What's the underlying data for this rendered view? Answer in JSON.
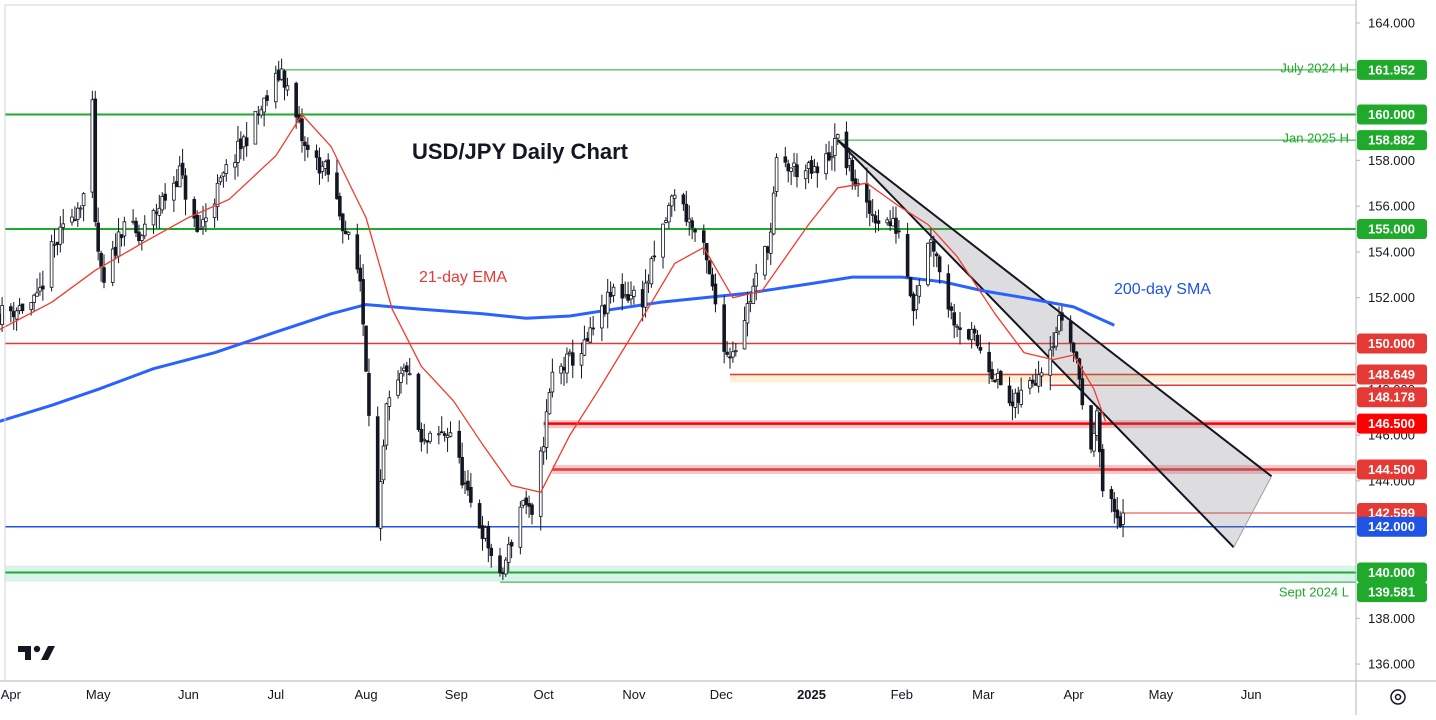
{
  "chart_data": {
    "type": "candlestick",
    "title": "USD/JPY Daily Chart",
    "ylim": [
      135.0,
      165.0
    ],
    "y_ticks": [
      "136.000",
      "138.000",
      "140.000",
      "142.000",
      "144.000",
      "146.000",
      "148.000",
      "150.000",
      "152.000",
      "154.000",
      "156.000",
      "158.000",
      "160.000",
      "162.000",
      "164.000"
    ],
    "x_ticks": [
      {
        "label": "Apr",
        "date": "2024-04-01",
        "bold": false
      },
      {
        "label": "May",
        "date": "2024-05-01",
        "bold": false
      },
      {
        "label": "Jun",
        "date": "2024-06-01",
        "bold": false
      },
      {
        "label": "Jul",
        "date": "2024-07-01",
        "bold": false
      },
      {
        "label": "Aug",
        "date": "2024-08-01",
        "bold": false
      },
      {
        "label": "Sep",
        "date": "2024-09-01",
        "bold": false
      },
      {
        "label": "Oct",
        "date": "2024-10-01",
        "bold": false
      },
      {
        "label": "Nov",
        "date": "2024-11-01",
        "bold": false
      },
      {
        "label": "Dec",
        "date": "2024-12-01",
        "bold": false
      },
      {
        "label": "2025",
        "date": "2025-01-01",
        "bold": true
      },
      {
        "label": "Feb",
        "date": "2025-02-01",
        "bold": false
      },
      {
        "label": "Mar",
        "date": "2025-03-01",
        "bold": false
      },
      {
        "label": "Apr",
        "date": "2025-04-01",
        "bold": false
      },
      {
        "label": "May",
        "date": "2025-05-01",
        "bold": false
      },
      {
        "label": "Jun",
        "date": "2025-06-01",
        "bold": false
      }
    ],
    "x_range": [
      "2024-03-30",
      "2025-07-07"
    ],
    "price_path": [
      [
        "2024-03-28",
        151.3
      ],
      [
        "2024-04-10",
        151.8
      ],
      [
        "2024-04-15",
        154.0
      ],
      [
        "2024-04-26",
        156.5
      ],
      [
        "2024-04-29",
        160.2
      ],
      [
        "2024-04-29",
        156.0
      ],
      [
        "2024-05-02",
        153.0
      ],
      [
        "2024-05-03",
        152.5
      ],
      [
        "2024-05-10",
        155.5
      ],
      [
        "2024-05-15",
        154.5
      ],
      [
        "2024-05-29",
        157.5
      ],
      [
        "2024-06-04",
        154.8
      ],
      [
        "2024-06-14",
        157.5
      ],
      [
        "2024-06-26",
        160.2
      ],
      [
        "2024-07-03",
        161.952
      ],
      [
        "2024-07-11",
        158.5
      ],
      [
        "2024-07-19",
        157.4
      ],
      [
        "2024-07-30",
        152.8
      ],
      [
        "2024-08-05",
        141.8
      ],
      [
        "2024-08-08",
        147.0
      ],
      [
        "2024-08-15",
        149.0
      ],
      [
        "2024-08-20",
        145.5
      ],
      [
        "2024-08-30",
        146.2
      ],
      [
        "2024-09-05",
        143.2
      ],
      [
        "2024-09-11",
        141.6
      ],
      [
        "2024-09-16",
        139.581
      ],
      [
        "2024-09-24",
        143.3
      ],
      [
        "2024-09-27",
        142.2
      ],
      [
        "2024-10-04",
        148.6
      ],
      [
        "2024-10-15",
        149.8
      ],
      [
        "2024-10-25",
        152.3
      ],
      [
        "2024-11-04",
        152.0
      ],
      [
        "2024-11-15",
        156.7
      ],
      [
        "2024-11-25",
        154.0
      ],
      [
        "2024-12-03",
        149.5
      ],
      [
        "2024-12-06",
        150.0
      ],
      [
        "2024-12-18",
        154.8
      ],
      [
        "2024-12-20",
        157.8
      ],
      [
        "2025-01-03",
        157.4
      ],
      [
        "2025-01-10",
        158.882
      ],
      [
        "2025-01-20",
        155.8
      ],
      [
        "2025-01-31",
        155.0
      ],
      [
        "2025-02-05",
        151.8
      ],
      [
        "2025-02-11",
        154.8
      ],
      [
        "2025-02-18",
        151.3
      ],
      [
        "2025-02-28",
        149.8
      ],
      [
        "2025-03-11",
        147.2
      ],
      [
        "2025-03-20",
        148.8
      ],
      [
        "2025-03-28",
        151.2
      ],
      [
        "2025-04-02",
        149.3
      ],
      [
        "2025-04-07",
        145.0
      ],
      [
        "2025-04-09",
        147.5
      ],
      [
        "2025-04-11",
        143.5
      ],
      [
        "2025-04-17",
        142.3
      ],
      [
        "2025-04-18",
        142.599
      ]
    ],
    "ema21_path": [
      [
        "2024-03-28",
        150.6
      ],
      [
        "2024-04-15",
        151.8
      ],
      [
        "2024-04-30",
        153.2
      ],
      [
        "2024-05-15",
        154.3
      ],
      [
        "2024-06-01",
        155.5
      ],
      [
        "2024-06-15",
        156.3
      ],
      [
        "2024-07-01",
        158.2
      ],
      [
        "2024-07-10",
        160.0
      ],
      [
        "2024-07-20",
        158.6
      ],
      [
        "2024-08-01",
        155.5
      ],
      [
        "2024-08-10",
        151.5
      ],
      [
        "2024-08-20",
        149.0
      ],
      [
        "2024-08-31",
        147.5
      ],
      [
        "2024-09-10",
        145.6
      ],
      [
        "2024-09-20",
        143.8
      ],
      [
        "2024-09-30",
        143.5
      ],
      [
        "2024-10-10",
        146.0
      ],
      [
        "2024-10-20",
        148.0
      ],
      [
        "2024-11-01",
        150.5
      ],
      [
        "2024-11-15",
        153.5
      ],
      [
        "2024-11-25",
        154.2
      ],
      [
        "2024-12-05",
        152.0
      ],
      [
        "2024-12-15",
        152.3
      ],
      [
        "2024-12-31",
        155.2
      ],
      [
        "2025-01-10",
        156.8
      ],
      [
        "2025-01-20",
        157.0
      ],
      [
        "2025-01-31",
        156.0
      ],
      [
        "2025-02-10",
        155.2
      ],
      [
        "2025-02-20",
        153.8
      ],
      [
        "2025-03-05",
        151.3
      ],
      [
        "2025-03-15",
        149.6
      ],
      [
        "2025-03-25",
        149.3
      ],
      [
        "2025-04-01",
        149.5
      ],
      [
        "2025-04-08",
        148.0
      ],
      [
        "2025-04-12",
        146.6
      ]
    ],
    "sma200_path": [
      [
        "2024-03-28",
        146.6
      ],
      [
        "2024-04-15",
        147.3
      ],
      [
        "2024-05-01",
        148.0
      ],
      [
        "2024-05-20",
        148.9
      ],
      [
        "2024-06-10",
        149.6
      ],
      [
        "2024-07-01",
        150.5
      ],
      [
        "2024-07-20",
        151.3
      ],
      [
        "2024-08-01",
        151.7
      ],
      [
        "2024-08-20",
        151.5
      ],
      [
        "2024-09-10",
        151.3
      ],
      [
        "2024-09-25",
        151.1
      ],
      [
        "2024-10-10",
        151.2
      ],
      [
        "2024-10-25",
        151.5
      ],
      [
        "2024-11-10",
        151.8
      ],
      [
        "2024-11-25",
        152.0
      ],
      [
        "2024-12-10",
        152.2
      ],
      [
        "2024-12-31",
        152.6
      ],
      [
        "2025-01-15",
        152.9
      ],
      [
        "2025-02-01",
        152.9
      ],
      [
        "2025-02-15",
        152.7
      ],
      [
        "2025-03-01",
        152.3
      ],
      [
        "2025-03-15",
        152.0
      ],
      [
        "2025-04-01",
        151.6
      ],
      [
        "2025-04-15",
        150.8
      ]
    ],
    "levels": [
      {
        "value": "161.952",
        "price": 161.952,
        "color": "#1faa2c",
        "note": "July 2024 H",
        "from": "2024-07-01",
        "width": 1
      },
      {
        "value": "160.000",
        "price": 160.0,
        "color": "#1faa2c",
        "note": "",
        "from": "2024-03-28",
        "width": 2
      },
      {
        "value": "158.882",
        "price": 158.882,
        "color": "#1faa2c",
        "note": "Jan 2025 H",
        "from": "2025-01-10",
        "width": 1
      },
      {
        "value": "155.000",
        "price": 155.0,
        "color": "#1faa2c",
        "note": "",
        "from": "2024-03-28",
        "width": 2
      },
      {
        "value": "150.000",
        "price": 150.0,
        "color": "#e53935",
        "note": "",
        "from": "2024-03-28",
        "width": 1.5
      },
      {
        "value": "148.649",
        "price": 148.649,
        "color": "#e53935",
        "note": "",
        "from": "2024-12-04",
        "width": 1.5
      },
      {
        "value": "148.178",
        "price": 148.178,
        "color": "#e53935",
        "note": "",
        "from": "2025-03-24",
        "width": 1.5
      },
      {
        "value": "146.500",
        "price": 146.5,
        "color": "#ff0000",
        "note": "",
        "from": "2024-10-01",
        "width": 2.5
      },
      {
        "value": "144.500",
        "price": 144.5,
        "color": "#e53935",
        "note": "",
        "from": "2024-10-04",
        "width": 2.5
      },
      {
        "value": "142.599",
        "price": 142.599,
        "color": "#e53935",
        "note": "",
        "from": "2025-04-18",
        "width": 1
      },
      {
        "value": "142.000",
        "price": 142.0,
        "color": "#1e53e5",
        "note": "",
        "from": "2024-03-28",
        "width": 1.5
      },
      {
        "value": "140.000",
        "price": 140.0,
        "color": "#1faa2c",
        "note": "",
        "from": "2024-03-28",
        "width": 2
      },
      {
        "value": "139.581",
        "price": 139.581,
        "color": "#1faa2c",
        "note": "Sept 2024 L",
        "from": "2024-09-16",
        "width": 1
      }
    ],
    "zones": [
      {
        "from": "2024-12-04",
        "low": 148.3,
        "high": 148.7,
        "color": "#fdf0d5"
      },
      {
        "from": "2024-10-01",
        "low": 146.3,
        "high": 146.65,
        "color": "#f5c7cb"
      },
      {
        "from": "2024-10-04",
        "low": 144.3,
        "high": 144.7,
        "color": "#f5c7cb"
      },
      {
        "from": "2024-03-28",
        "low": 139.6,
        "high": 140.3,
        "color": "#d8f3ea"
      }
    ],
    "channel": {
      "upper": [
        [
          "2025-01-10",
          158.882
        ],
        [
          "2025-06-08",
          144.2
        ]
      ],
      "lower": [
        [
          "2025-01-10",
          158.882
        ],
        [
          "2025-05-26",
          141.1
        ]
      ],
      "projection": [
        [
          "2025-06-08",
          144.2
        ],
        [
          "2025-05-26",
          141.1
        ]
      ]
    },
    "annotations": [
      {
        "text": "21-day EMA",
        "color": "#e53935"
      },
      {
        "text": "200-day SMA",
        "color": "#1e53e5"
      }
    ],
    "series": [
      {
        "name": "21-day EMA",
        "color": "#f23a2d"
      },
      {
        "name": "200-day SMA",
        "color": "#2962ff"
      }
    ]
  },
  "brand": {
    "logo": "TV"
  },
  "settings_icon": "gear-icon"
}
